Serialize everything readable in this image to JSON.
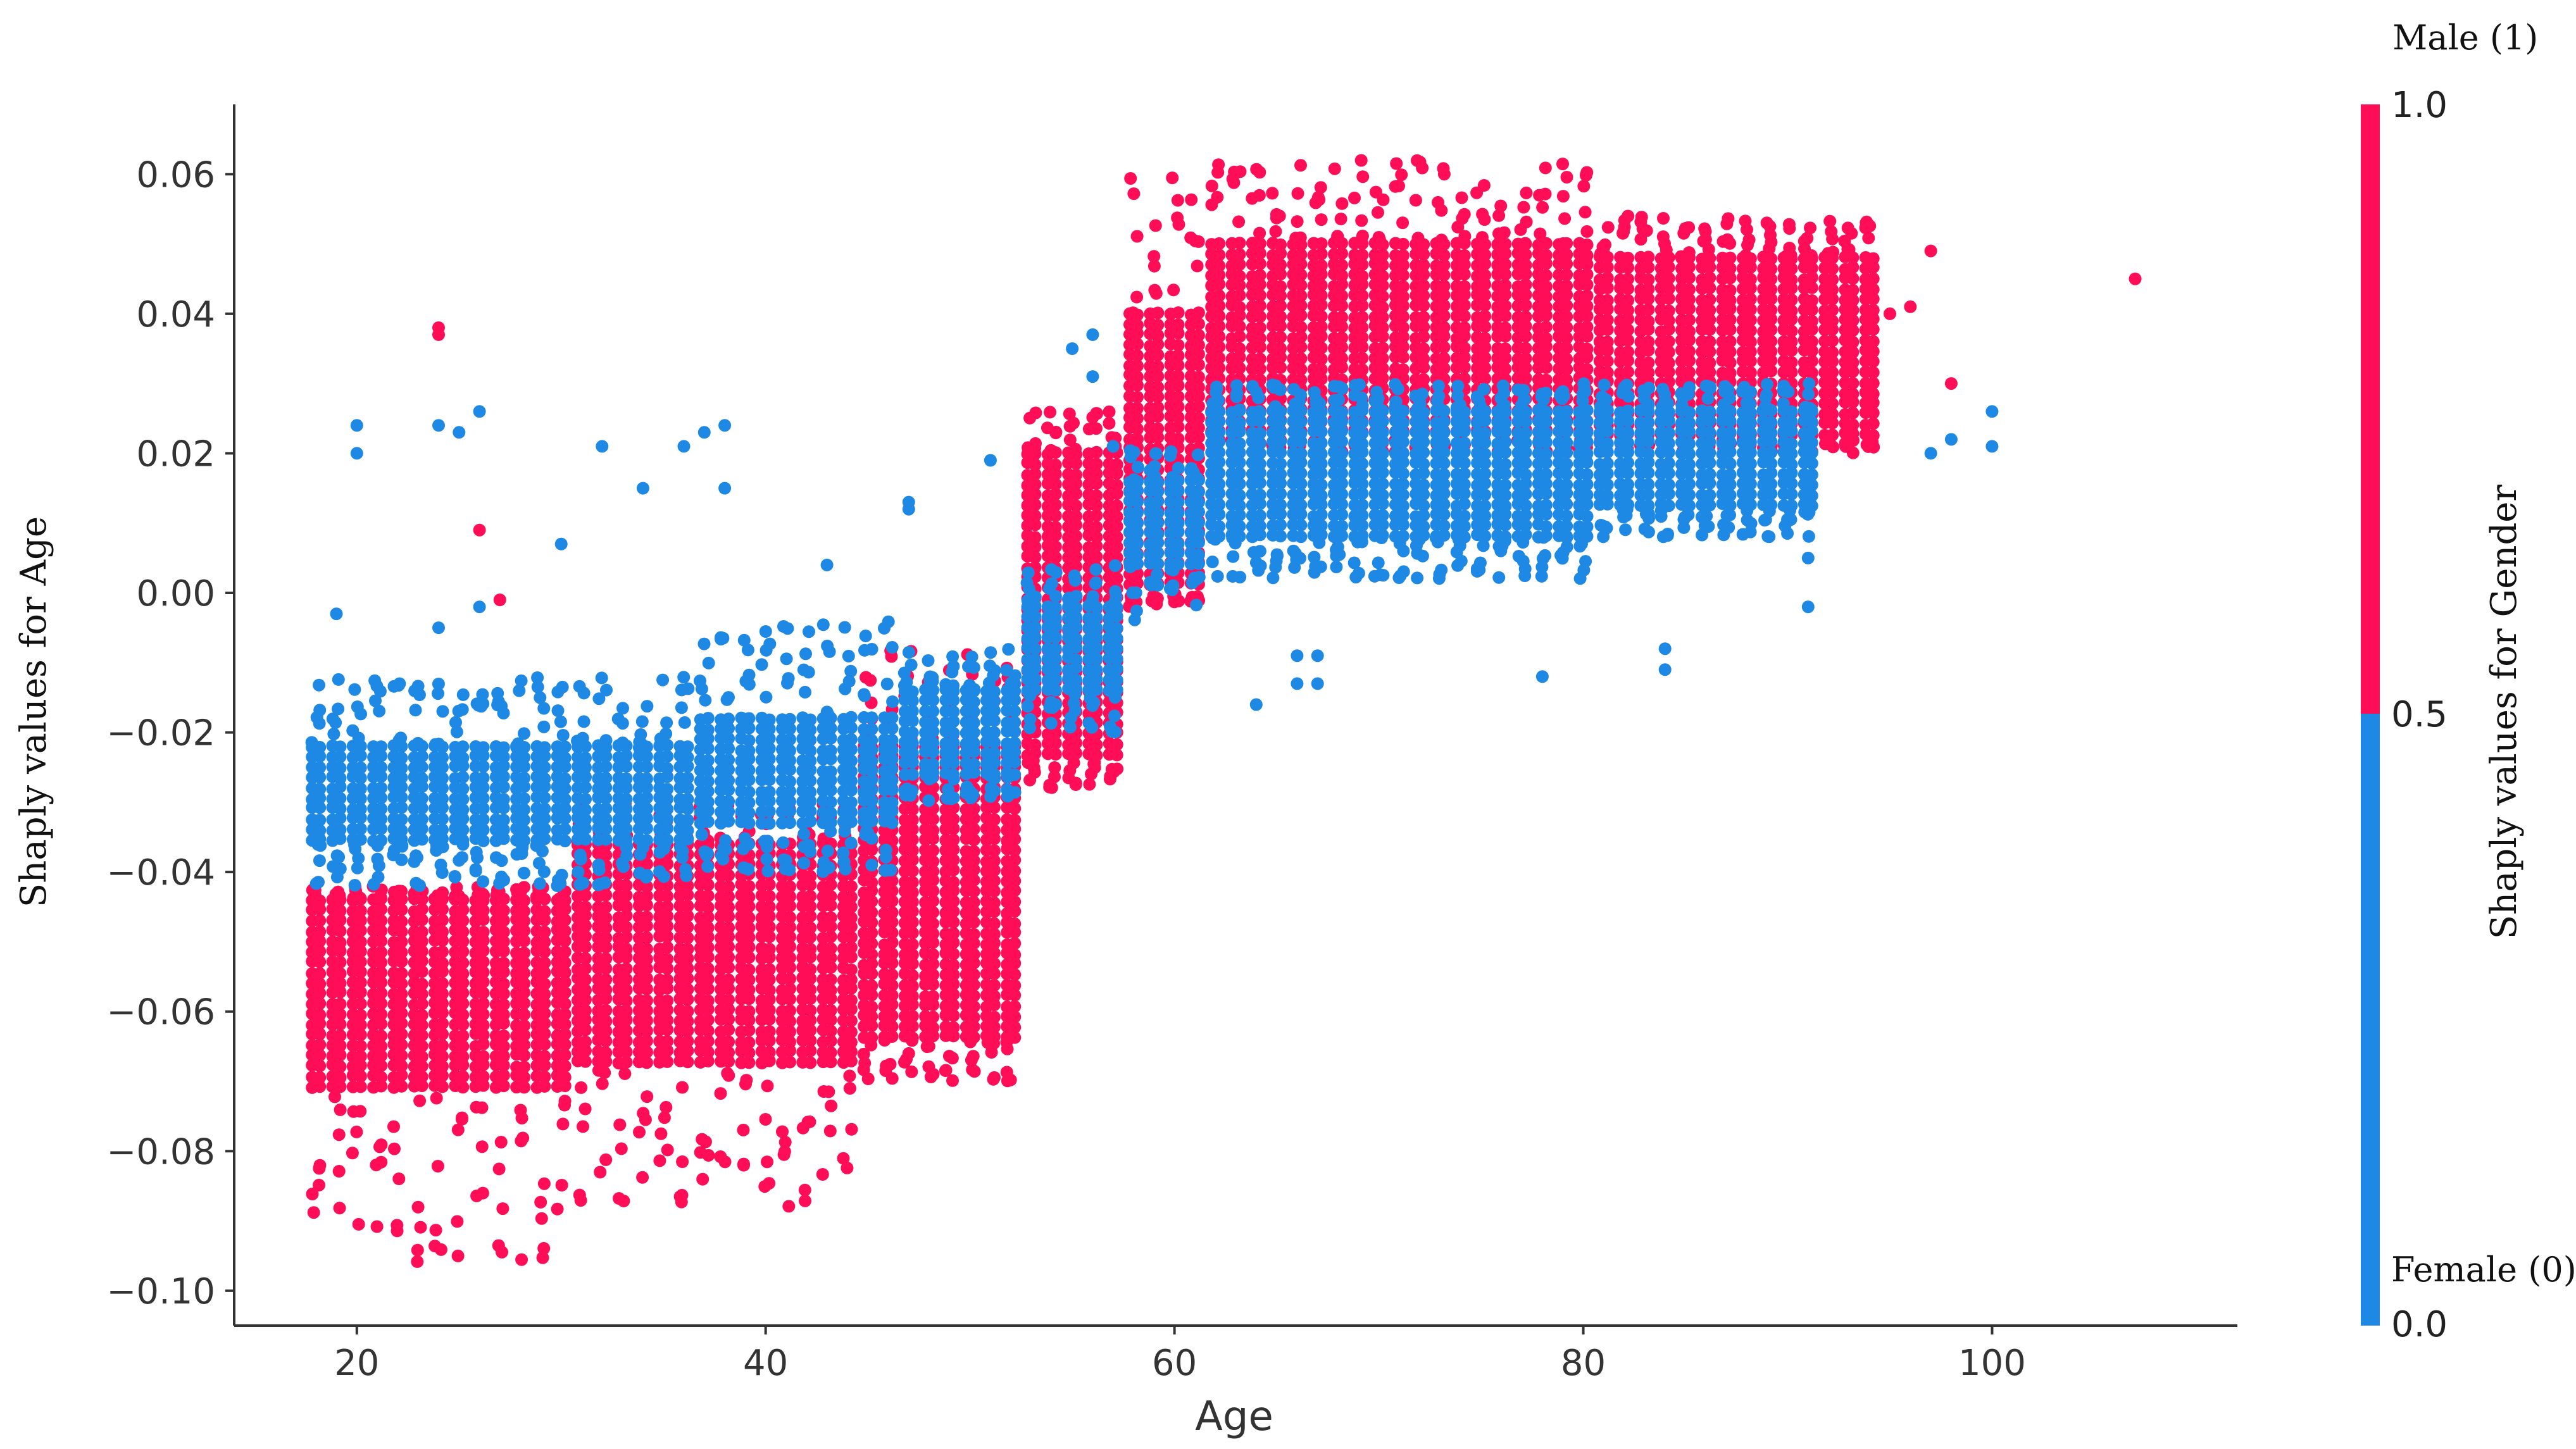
{
  "chart_data": {
    "type": "scatter",
    "xlabel": "Age",
    "ylabel": "Shaply values for Age",
    "xlim": [
      14,
      112
    ],
    "ylim": [
      -0.105,
      0.07
    ],
    "xticks": [
      20,
      40,
      60,
      80,
      100
    ],
    "yticks": [
      0.06,
      0.04,
      0.02,
      0.0,
      -0.02,
      -0.04,
      -0.06,
      -0.08,
      -0.1
    ],
    "ytick_labels": [
      "0.06",
      "0.04",
      "0.02",
      "0.00",
      "−0.02",
      "−0.04",
      "−0.06",
      "−0.08",
      "−0.10"
    ],
    "xtick_labels": [
      "20",
      "40",
      "60",
      "80",
      "100"
    ],
    "grid": false,
    "colorbar": {
      "label": "Shaply values for Gender",
      "range": [
        0.0,
        1.0
      ],
      "ticks": [
        "1.0",
        "0.5",
        "0.0"
      ],
      "top_label": "Male (1)",
      "bottom_label": "Female (0)",
      "high_color": "#ff0d57",
      "low_color": "#1e88e5"
    },
    "series": [
      {
        "name": "Male (1)",
        "color": "#ff0d57",
        "bands": [
          {
            "x": [
              18,
              30
            ],
            "core": [
              -0.072,
              -0.044
            ],
            "range": [
              -0.096,
              -0.042
            ]
          },
          {
            "x": [
              31,
              44
            ],
            "core": [
              -0.068,
              -0.036
            ],
            "range": [
              -0.088,
              -0.03
            ]
          },
          {
            "x": [
              45,
              52
            ],
            "core": [
              -0.064,
              -0.022
            ],
            "range": [
              -0.07,
              -0.008
            ]
          },
          {
            "x": [
              53,
              57
            ],
            "core": [
              -0.024,
              0.02
            ],
            "range": [
              -0.028,
              0.026
            ]
          },
          {
            "x": [
              58,
              61
            ],
            "core": [
              0.0,
              0.04
            ],
            "range": [
              -0.002,
              0.06
            ]
          },
          {
            "x": [
              62,
              80
            ],
            "core": [
              0.022,
              0.05
            ],
            "range": [
              0.02,
              0.062
            ]
          },
          {
            "x": [
              81,
              94
            ],
            "core": [
              0.022,
              0.048
            ],
            "range": [
              0.02,
              0.054
            ]
          }
        ],
        "outliers": [
          [
            24,
            0.037
          ],
          [
            24,
            0.038
          ],
          [
            26,
            0.009
          ],
          [
            27,
            -0.001
          ],
          [
            107,
            0.045
          ],
          [
            98,
            0.03
          ],
          [
            97,
            0.049
          ],
          [
            96,
            0.041
          ],
          [
            95,
            0.04
          ]
        ]
      },
      {
        "name": "Female (0)",
        "color": "#1e88e5",
        "bands": [
          {
            "x": [
              18,
              36
            ],
            "core": [
              -0.036,
              -0.022
            ],
            "range": [
              -0.042,
              -0.012
            ]
          },
          {
            "x": [
              37,
              46
            ],
            "core": [
              -0.034,
              -0.018
            ],
            "range": [
              -0.04,
              -0.004
            ]
          },
          {
            "x": [
              47,
              52
            ],
            "core": [
              -0.026,
              -0.014
            ],
            "range": [
              -0.03,
              -0.008
            ]
          },
          {
            "x": [
              53,
              57
            ],
            "core": [
              -0.014,
              -0.002
            ],
            "range": [
              -0.02,
              0.004
            ]
          },
          {
            "x": [
              58,
              61
            ],
            "core": [
              0.004,
              0.016
            ],
            "range": [
              -0.004,
              0.022
            ]
          },
          {
            "x": [
              62,
              80
            ],
            "core": [
              0.008,
              0.026
            ],
            "range": [
              0.002,
              0.03
            ]
          },
          {
            "x": [
              81,
              91
            ],
            "core": [
              0.012,
              0.026
            ],
            "range": [
              0.008,
              0.03
            ]
          }
        ],
        "outliers": [
          [
            20,
            0.024
          ],
          [
            20,
            0.02
          ],
          [
            24,
            0.024
          ],
          [
            25,
            0.023
          ],
          [
            26,
            0.026
          ],
          [
            32,
            0.021
          ],
          [
            34,
            0.015
          ],
          [
            36,
            0.021
          ],
          [
            37,
            0.023
          ],
          [
            38,
            0.024
          ],
          [
            38,
            0.015
          ],
          [
            30,
            0.007
          ],
          [
            43,
            0.004
          ],
          [
            47,
            0.012
          ],
          [
            47,
            0.013
          ],
          [
            51,
            0.019
          ],
          [
            55,
            0.035
          ],
          [
            56,
            0.037
          ],
          [
            56,
            0.031
          ],
          [
            57,
            0.021
          ],
          [
            100,
            0.026
          ],
          [
            100,
            0.021
          ],
          [
            98,
            0.022
          ],
          [
            97,
            0.02
          ],
          [
            91,
            0.005
          ],
          [
            91,
            -0.002
          ],
          [
            84,
            -0.008
          ],
          [
            84,
            -0.011
          ],
          [
            78,
            -0.012
          ],
          [
            64,
            -0.016
          ],
          [
            66,
            -0.009
          ],
          [
            66,
            -0.013
          ],
          [
            67,
            -0.009
          ],
          [
            67,
            -0.013
          ],
          [
            19,
            -0.003
          ],
          [
            24,
            -0.005
          ],
          [
            26,
            -0.002
          ]
        ]
      }
    ]
  }
}
